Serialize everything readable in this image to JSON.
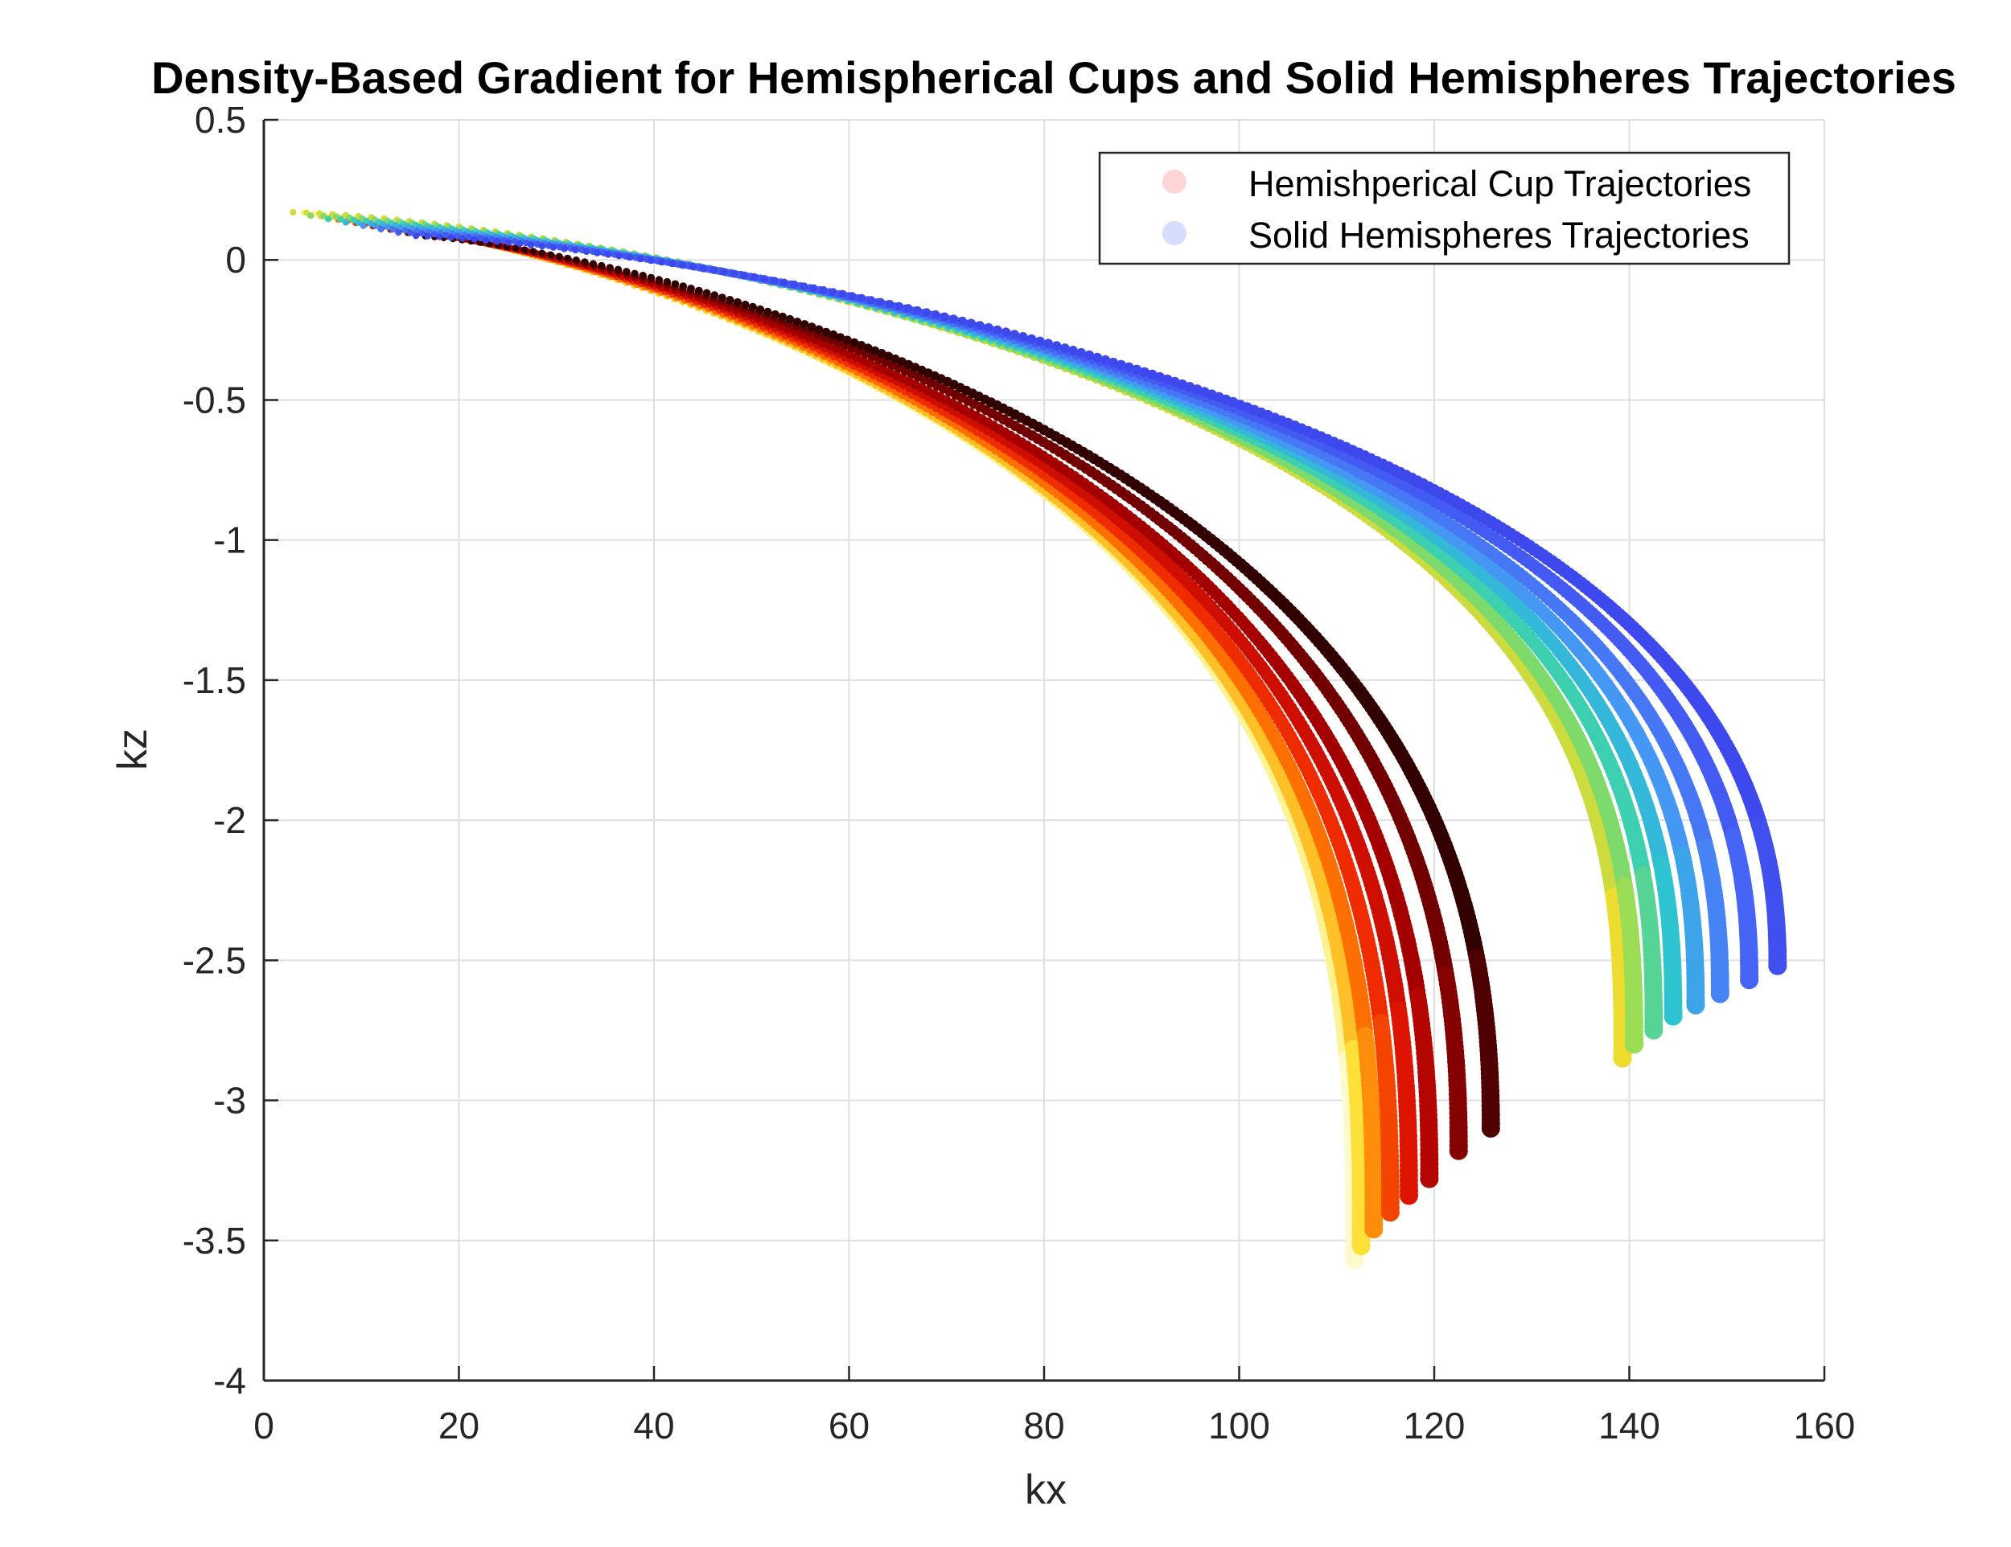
{
  "chart_data": {
    "type": "scatter",
    "title": "Density-Based Gradient for Hemispherical Cups and Solid Hemispheres Trajectories",
    "xlabel": "kx",
    "ylabel": "kz",
    "xlim": [
      0,
      160
    ],
    "ylim": [
      -4,
      0.5
    ],
    "xticks": [
      0,
      20,
      40,
      60,
      80,
      100,
      120,
      140,
      160
    ],
    "yticks": [
      -4,
      -3.5,
      -3,
      -2.5,
      -2,
      -1.5,
      -1,
      -0.5,
      0,
      0.5
    ],
    "grid": true,
    "legend_position": "top-right",
    "series": [
      {
        "name": "Hemishperical Cup Trajectories",
        "color": "#ff3300",
        "legend_color": "#ffd6d6",
        "colormap": "hot",
        "start": [
          3,
          0.17
        ],
        "trajectory_count": 8,
        "end_points": [
          [
            111.8,
            -3.57
          ],
          [
            112.5,
            -3.52
          ],
          [
            113.8,
            -3.46
          ],
          [
            115.5,
            -3.4
          ],
          [
            117.4,
            -3.34
          ],
          [
            119.5,
            -3.28
          ],
          [
            122.5,
            -3.18
          ],
          [
            125.8,
            -3.1
          ]
        ]
      },
      {
        "name": "Solid Hemispheres Trajectories",
        "color": "#4466ff",
        "legend_color": "#d6ddff",
        "colormap": "jet",
        "start": [
          3,
          0.17
        ],
        "trajectory_count": 8,
        "end_points": [
          [
            139.3,
            -2.85
          ],
          [
            140.5,
            -2.8
          ],
          [
            142.5,
            -2.75
          ],
          [
            144.5,
            -2.7
          ],
          [
            146.8,
            -2.66
          ],
          [
            149.3,
            -2.62
          ],
          [
            152.3,
            -2.57
          ],
          [
            155.2,
            -2.52
          ]
        ]
      }
    ]
  }
}
